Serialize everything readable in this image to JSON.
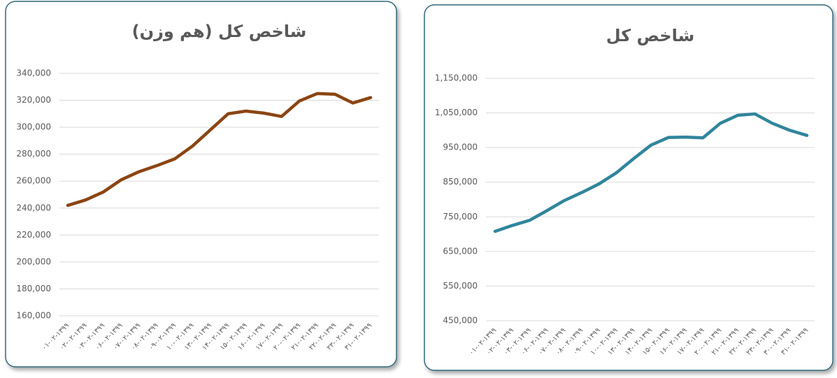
{
  "chart_data": [
    {
      "type": "line",
      "title": "شاخص کل (هم وزن)",
      "categories": [
        "۰۱-۰۲-۱۳۹۹",
        "۰۲-۰۲-۱۳۹۹",
        "۰۳-۰۲-۱۳۹۹",
        "۰۶-۰۲-۱۳۹۹",
        "۰۷-۰۲-۱۳۹۹",
        "۰۸-۰۲-۱۳۹۹",
        "۰۹-۰۲-۱۳۹۹",
        "۱۰-۰۲-۱۳۹۹",
        "۱۳-۰۲-۱۳۹۹",
        "۱۴-۰۲-۱۳۹۹",
        "۱۵-۰۲-۱۳۹۹",
        "۱۶-۰۲-۱۳۹۹",
        "۱۷-۰۲-۱۳۹۹",
        "۲۰-۰۲-۱۳۹۹",
        "۲۱-۰۲-۱۳۹۹",
        "۲۲-۰۲-۱۳۹۹",
        "۲۳-۰۲-۱۳۹۹",
        "۳۱-۰۲-۱۳۹۹"
      ],
      "series": [
        {
          "name": "شاخص کل (هم وزن)",
          "color": "#8b4513",
          "values": [
            242000,
            246000,
            252000,
            261000,
            267000,
            271500,
            276500,
            286000,
            298000,
            310000,
            312000,
            310500,
            308000,
            319500,
            325000,
            324500,
            318000,
            322000
          ]
        }
      ],
      "ylim": [
        160000,
        340000
      ],
      "yticks": [
        {
          "value": 160000,
          "label": "160,000"
        },
        {
          "value": 180000,
          "label": "180,000"
        },
        {
          "value": 200000,
          "label": "200,000"
        },
        {
          "value": 220000,
          "label": "220,000"
        },
        {
          "value": 240000,
          "label": "240,000"
        },
        {
          "value": 260000,
          "label": "260,000"
        },
        {
          "value": 280000,
          "label": "280,000"
        },
        {
          "value": 300000,
          "label": "300,000"
        },
        {
          "value": 320000,
          "label": "320,000"
        },
        {
          "value": 340000,
          "label": "340,000"
        }
      ],
      "grid": true
    },
    {
      "type": "line",
      "title": "شاخص کل",
      "categories": [
        "۰۱-۰۲-۱۳۹۹",
        "۰۲-۰۲-۱۳۹۹",
        "۰۳-۰۲-۱۳۹۹",
        "۰۶-۰۲-۱۳۹۹",
        "۰۷-۰۲-۱۳۹۹",
        "۰۸-۰۲-۱۳۹۹",
        "۰۹-۰۲-۱۳۹۹",
        "۱۰-۰۲-۱۳۹۹",
        "۱۳-۰۲-۱۳۹۹",
        "۱۴-۰۲-۱۳۹۹",
        "۱۵-۰۲-۱۳۹۹",
        "۱۶-۰۲-۱۳۹۹",
        "۱۷-۰۲-۱۳۹۹",
        "۲۰-۰۲-۱۳۹۹",
        "۲۱-۰۲-۱۳۹۹",
        "۲۲-۰۲-۱۳۹۹",
        "۲۳-۰۲-۱۳۹۹",
        "۳۰-۰۲-۱۳۹۹",
        "۳۱-۰۲-۱۳۹۹"
      ],
      "series": [
        {
          "name": "شاخص کل",
          "color": "#31859c",
          "values": [
            708000,
            725000,
            740000,
            768000,
            797000,
            820000,
            845000,
            877000,
            918000,
            957000,
            979000,
            980000,
            978000,
            1020000,
            1043000,
            1047000,
            1020000,
            1000000,
            985000
          ]
        }
      ],
      "ylim": [
        450000,
        1150000
      ],
      "yticks": [
        {
          "value": 450000,
          "label": "450,000"
        },
        {
          "value": 550000,
          "label": "550,000"
        },
        {
          "value": 650000,
          "label": "650,000"
        },
        {
          "value": 750000,
          "label": "750,000"
        },
        {
          "value": 850000,
          "label": "850,000"
        },
        {
          "value": 950000,
          "label": "950,000"
        },
        {
          "value": 1050000,
          "label": "1,050,000"
        },
        {
          "value": 1150000,
          "label": "1,150,000"
        }
      ],
      "grid": true
    }
  ]
}
